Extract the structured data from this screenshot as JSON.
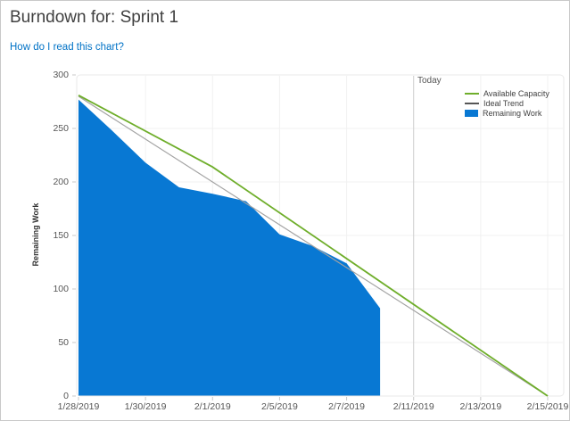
{
  "page": {
    "title": "Burndown for: Sprint 1",
    "help_link": "How do I read this chart?"
  },
  "chart_data": {
    "type": "area",
    "title": "Burndown for: Sprint 1",
    "xlabel": "",
    "ylabel": "Remaining Work",
    "ylim": [
      0,
      300
    ],
    "y_ticks": [
      0,
      50,
      100,
      150,
      200,
      250,
      300
    ],
    "x_working_days": [
      "1/28/2019",
      "1/29/2019",
      "1/30/2019",
      "1/31/2019",
      "2/1/2019",
      "2/4/2019",
      "2/5/2019",
      "2/6/2019",
      "2/7/2019",
      "2/8/2019",
      "2/11/2019",
      "2/12/2019",
      "2/13/2019",
      "2/14/2019",
      "2/15/2019"
    ],
    "x_tick_labels": [
      "1/28/2019",
      "1/30/2019",
      "2/1/2019",
      "2/5/2019",
      "2/7/2019",
      "2/11/2019",
      "2/13/2019",
      "2/15/2019"
    ],
    "grid": true,
    "legend_position": "top-right",
    "today": {
      "label": "Today",
      "date": "2/11/2019"
    },
    "series": [
      {
        "name": "Available Capacity",
        "type": "line",
        "color": "#6fae2b",
        "points": [
          {
            "date": "1/28/2019",
            "value": 281
          },
          {
            "date": "2/1/2019",
            "value": 214
          },
          {
            "date": "2/15/2019",
            "value": 0
          }
        ]
      },
      {
        "name": "Ideal Trend",
        "type": "line",
        "color": "#a3a3a3",
        "points": [
          {
            "date": "1/28/2019",
            "value": 280
          },
          {
            "date": "2/15/2019",
            "value": 0
          }
        ]
      },
      {
        "name": "Remaining Work",
        "type": "area",
        "color": "#0878d3",
        "points": [
          {
            "date": "1/28/2019",
            "value": 277
          },
          {
            "date": "1/29/2019",
            "value": 248
          },
          {
            "date": "1/30/2019",
            "value": 218
          },
          {
            "date": "1/31/2019",
            "value": 195
          },
          {
            "date": "2/1/2019",
            "value": 189
          },
          {
            "date": "2/4/2019",
            "value": 182
          },
          {
            "date": "2/5/2019",
            "value": 151
          },
          {
            "date": "2/6/2019",
            "value": 140
          },
          {
            "date": "2/7/2019",
            "value": 124
          },
          {
            "date": "2/8/2019",
            "value": 82
          }
        ]
      }
    ]
  },
  "legend": {
    "items": [
      {
        "swatch": "line",
        "color": "#6fae2b"
      },
      {
        "swatch": "line",
        "color": "#565656"
      },
      {
        "swatch": "rect",
        "color": "#0878d3"
      }
    ]
  },
  "colors": {
    "remaining_work_fill": "#0878d3",
    "available_capacity_line": "#6fae2b",
    "ideal_trend_line": "#a3a3a3",
    "gridline": "#f0f0f0",
    "today_line": "#cfcfcf",
    "link": "#0072c6",
    "title_text": "#404040",
    "axis_text": "#565656"
  }
}
